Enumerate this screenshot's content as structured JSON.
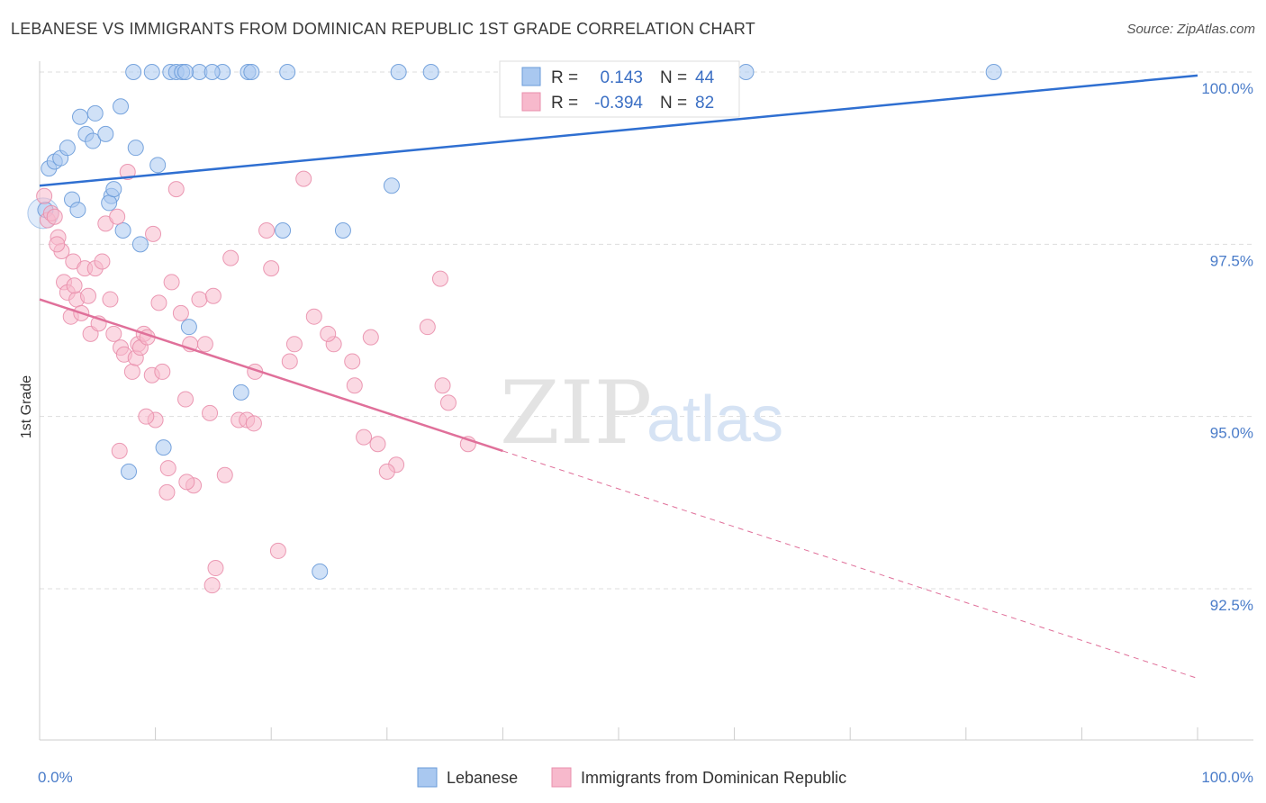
{
  "title": "LEBANESE VS IMMIGRANTS FROM DOMINICAN REPUBLIC 1ST GRADE CORRELATION CHART",
  "source": "Source: ZipAtlas.com",
  "watermark": {
    "zip": "ZIP",
    "atlas": "atlas"
  },
  "colors": {
    "blue_fill": "#a9c8f0",
    "blue_stroke": "#6a9bd9",
    "blue_line": "#2f6fd1",
    "pink_fill": "#f7b9cc",
    "pink_stroke": "#e98fac",
    "pink_line": "#e0709a",
    "grid": "#dddddd",
    "tick": "#4a7cc9"
  },
  "stats": [
    {
      "r_label": "R =",
      "r": " 0.143",
      "n_label": "N =",
      "n": "44"
    },
    {
      "r_label": "R =",
      "r": "-0.394",
      "n_label": "N =",
      "n": "82"
    }
  ],
  "chart_data": {
    "type": "scatter",
    "title": "LEBANESE VS IMMIGRANTS FROM DOMINICAN REPUBLIC 1ST GRADE CORRELATION CHART",
    "xlabel": "",
    "ylabel": "1st Grade",
    "xlim": [
      0,
      100
    ],
    "ylim": [
      90.2,
      100.6
    ],
    "x_ticks": [
      "0.0%",
      "100.0%"
    ],
    "y_ticks": [
      {
        "value": 100.0,
        "label": "100.0%"
      },
      {
        "value": 97.5,
        "label": "97.5%"
      },
      {
        "value": 95.0,
        "label": "95.0%"
      },
      {
        "value": 92.5,
        "label": "92.5%"
      }
    ],
    "grid": true,
    "legend_position": "bottom-center",
    "series": [
      {
        "name": "Lebanese",
        "color": "#a9c8f0",
        "trend": {
          "x": [
            0,
            100
          ],
          "y": [
            98.35,
            99.95
          ],
          "dashed_from": null
        },
        "points": [
          [
            0.8,
            98.6
          ],
          [
            1.3,
            98.7
          ],
          [
            1.8,
            98.75
          ],
          [
            2.4,
            98.9
          ],
          [
            0.5,
            98.0
          ],
          [
            2.8,
            98.15
          ],
          [
            3.3,
            98.0
          ],
          [
            3.5,
            99.35
          ],
          [
            4.0,
            99.1
          ],
          [
            4.6,
            99.0
          ],
          [
            4.8,
            99.4
          ],
          [
            5.7,
            99.1
          ],
          [
            6.2,
            98.2
          ],
          [
            6.0,
            98.1
          ],
          [
            6.4,
            98.3
          ],
          [
            7.0,
            99.5
          ],
          [
            7.2,
            97.7
          ],
          [
            8.3,
            98.9
          ],
          [
            8.7,
            97.5
          ],
          [
            10.2,
            98.65
          ],
          [
            8.1,
            100.0
          ],
          [
            9.7,
            100.0
          ],
          [
            11.3,
            100.0
          ],
          [
            11.8,
            100.0
          ],
          [
            12.3,
            100.0
          ],
          [
            13.8,
            100.0
          ],
          [
            15.8,
            100.0
          ],
          [
            18.0,
            100.0
          ],
          [
            18.3,
            100.0
          ],
          [
            21.4,
            100.0
          ],
          [
            31.0,
            100.0
          ],
          [
            33.8,
            100.0
          ],
          [
            61.0,
            100.0
          ],
          [
            82.4,
            100.0
          ],
          [
            12.9,
            96.3
          ],
          [
            10.7,
            94.55
          ],
          [
            7.7,
            94.2
          ],
          [
            17.4,
            95.35
          ],
          [
            21.0,
            97.7
          ],
          [
            30.4,
            98.35
          ],
          [
            26.2,
            97.7
          ],
          [
            24.2,
            92.75
          ],
          [
            12.6,
            100.0
          ],
          [
            14.9,
            100.0
          ]
        ]
      },
      {
        "name": "Immigrants from Dominican Republic",
        "color": "#f7b9cc",
        "trend": {
          "x": [
            0,
            100
          ],
          "y": [
            96.7,
            91.2
          ],
          "dashed_from": 40
        },
        "points": [
          [
            0.4,
            98.2
          ],
          [
            0.7,
            97.85
          ],
          [
            1.0,
            97.95
          ],
          [
            1.3,
            97.9
          ],
          [
            1.6,
            97.6
          ],
          [
            1.9,
            97.4
          ],
          [
            2.1,
            96.95
          ],
          [
            2.4,
            96.8
          ],
          [
            2.7,
            96.45
          ],
          [
            2.9,
            97.25
          ],
          [
            3.2,
            96.7
          ],
          [
            3.6,
            96.5
          ],
          [
            3.9,
            97.15
          ],
          [
            4.2,
            96.75
          ],
          [
            4.4,
            96.2
          ],
          [
            4.8,
            97.15
          ],
          [
            5.1,
            96.35
          ],
          [
            5.4,
            97.25
          ],
          [
            5.7,
            97.8
          ],
          [
            6.1,
            96.7
          ],
          [
            6.4,
            96.2
          ],
          [
            6.7,
            97.9
          ],
          [
            7.0,
            96.0
          ],
          [
            7.3,
            95.9
          ],
          [
            7.6,
            98.55
          ],
          [
            8.0,
            95.65
          ],
          [
            8.3,
            95.85
          ],
          [
            8.5,
            96.05
          ],
          [
            8.7,
            96.0
          ],
          [
            9.0,
            96.2
          ],
          [
            9.3,
            96.15
          ],
          [
            9.7,
            95.6
          ],
          [
            10.0,
            94.95
          ],
          [
            10.3,
            96.65
          ],
          [
            10.6,
            95.65
          ],
          [
            11.1,
            94.25
          ],
          [
            11.4,
            96.95
          ],
          [
            11.8,
            98.3
          ],
          [
            12.2,
            96.5
          ],
          [
            12.6,
            95.25
          ],
          [
            13.0,
            96.05
          ],
          [
            13.3,
            94.0
          ],
          [
            13.8,
            96.7
          ],
          [
            14.3,
            96.05
          ],
          [
            14.7,
            95.05
          ],
          [
            15.2,
            92.8
          ],
          [
            16.0,
            94.15
          ],
          [
            16.5,
            97.3
          ],
          [
            17.2,
            94.95
          ],
          [
            17.9,
            94.95
          ],
          [
            18.6,
            95.65
          ],
          [
            19.6,
            97.7
          ],
          [
            20.6,
            93.05
          ],
          [
            21.6,
            95.8
          ],
          [
            22.8,
            98.45
          ],
          [
            23.7,
            96.45
          ],
          [
            25.4,
            96.05
          ],
          [
            27.2,
            95.45
          ],
          [
            28.6,
            96.15
          ],
          [
            28.0,
            94.7
          ],
          [
            29.2,
            94.6
          ],
          [
            30.8,
            94.3
          ],
          [
            33.5,
            96.3
          ],
          [
            34.6,
            97.0
          ],
          [
            34.8,
            95.45
          ],
          [
            35.3,
            95.2
          ],
          [
            37.0,
            94.6
          ],
          [
            14.9,
            92.55
          ],
          [
            9.8,
            97.65
          ],
          [
            11.0,
            93.9
          ],
          [
            12.7,
            94.05
          ],
          [
            15.0,
            96.75
          ],
          [
            18.5,
            94.9
          ],
          [
            22.0,
            96.05
          ],
          [
            24.9,
            96.2
          ],
          [
            27.0,
            95.8
          ],
          [
            30.0,
            94.2
          ],
          [
            6.9,
            94.5
          ],
          [
            9.2,
            95.0
          ],
          [
            20.0,
            97.15
          ],
          [
            3.0,
            96.9
          ],
          [
            1.5,
            97.5
          ]
        ]
      }
    ]
  },
  "legend": {
    "items": [
      {
        "label": "Lebanese"
      },
      {
        "label": "Immigrants from Dominican Republic"
      }
    ]
  }
}
